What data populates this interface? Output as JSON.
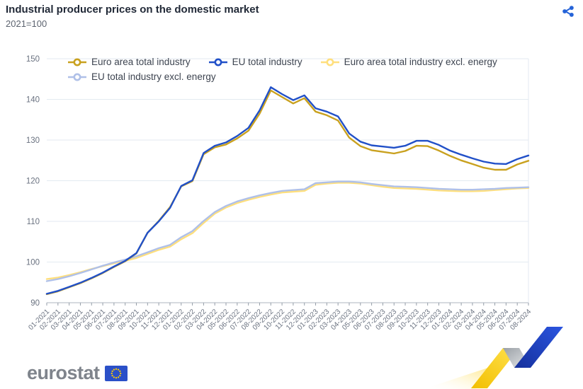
{
  "header": {
    "title": "Industrial producer prices on the domestic market",
    "subtitle": "2021=100"
  },
  "footer": {
    "logo_text": "eurostat"
  },
  "accent_colors": {
    "share_icon": "#2563d8",
    "flag_blue": "#2b50c8",
    "flag_star_yellow": "#ffcc00",
    "ribbon_yellow": "#ffd617",
    "ribbon_blue": "#1d46c8"
  },
  "chart_data": {
    "type": "line",
    "title": "Industrial producer prices on the domestic market",
    "subtitle": "2021=100",
    "legend_position": "top",
    "grid": true,
    "ylim": [
      90,
      150
    ],
    "ytick_step": 10,
    "categories": [
      "01-2021",
      "02-2021",
      "03-2021",
      "04-2021",
      "05-2021",
      "06-2021",
      "07-2021",
      "08-2021",
      "09-2021",
      "10-2021",
      "11-2021",
      "12-2021",
      "01-2022",
      "02-2022",
      "03-2022",
      "04-2022",
      "05-2022",
      "06-2022",
      "07-2022",
      "08-2022",
      "09-2022",
      "10-2022",
      "11-2022",
      "12-2022",
      "01-2023",
      "02-2023",
      "03-2023",
      "04-2023",
      "05-2023",
      "06-2023",
      "07-2023",
      "08-2023",
      "09-2023",
      "10-2023",
      "11-2023",
      "12-2023",
      "01-2024",
      "02-2024",
      "03-2024",
      "04-2024",
      "05-2024",
      "06-2024",
      "07-2024",
      "08-2024"
    ],
    "series": [
      {
        "name": "Euro area total industry",
        "color": "#c9a11f",
        "values": [
          92.1,
          92.8,
          93.8,
          94.8,
          96.0,
          97.3,
          98.8,
          100.2,
          102.1,
          107.2,
          110.1,
          113.5,
          118.6,
          119.9,
          126.5,
          128.2,
          128.9,
          130.4,
          132.3,
          136.5,
          142.2,
          140.6,
          139.0,
          140.3,
          137.0,
          136.1,
          134.8,
          130.6,
          128.5,
          127.5,
          127.1,
          126.7,
          127.3,
          128.6,
          128.5,
          127.4,
          126.1,
          125.0,
          124.1,
          123.2,
          122.7,
          122.7,
          124.0,
          124.9
        ]
      },
      {
        "name": "EU total industry",
        "color": "#2150c8",
        "values": [
          92.2,
          92.9,
          93.9,
          94.9,
          96.1,
          97.4,
          98.9,
          100.3,
          102.2,
          107.2,
          110.0,
          113.3,
          118.7,
          120.1,
          126.8,
          128.6,
          129.4,
          131.0,
          133.0,
          137.3,
          143.0,
          141.3,
          139.8,
          141.0,
          137.8,
          137.0,
          135.8,
          131.6,
          129.6,
          128.7,
          128.4,
          128.1,
          128.6,
          129.8,
          129.8,
          128.8,
          127.4,
          126.4,
          125.5,
          124.7,
          124.2,
          124.1,
          125.3,
          126.2
        ]
      },
      {
        "name": "Euro area total industry excl. energy",
        "color": "#ffdf7d",
        "values": [
          95.8,
          96.2,
          96.8,
          97.5,
          98.3,
          99.0,
          99.7,
          100.3,
          101.0,
          102.0,
          103.0,
          103.8,
          105.6,
          107.1,
          109.6,
          111.9,
          113.4,
          114.5,
          115.3,
          116.0,
          116.6,
          117.1,
          117.3,
          117.5,
          119.0,
          119.3,
          119.5,
          119.5,
          119.3,
          118.9,
          118.5,
          118.2,
          118.1,
          118.0,
          117.8,
          117.6,
          117.5,
          117.4,
          117.4,
          117.5,
          117.7,
          117.9,
          118.1,
          118.2
        ]
      },
      {
        "name": "EU total industry excl. energy",
        "color": "#afc0e8",
        "values": [
          95.3,
          95.8,
          96.5,
          97.3,
          98.2,
          99.1,
          99.9,
          100.6,
          101.4,
          102.4,
          103.4,
          104.2,
          106.1,
          107.6,
          110.1,
          112.3,
          113.8,
          114.9,
          115.7,
          116.4,
          117.0,
          117.5,
          117.7,
          117.9,
          119.4,
          119.6,
          119.8,
          119.8,
          119.6,
          119.2,
          118.9,
          118.6,
          118.5,
          118.4,
          118.2,
          118.0,
          117.9,
          117.8,
          117.8,
          117.9,
          118.0,
          118.2,
          118.3,
          118.4
        ]
      }
    ]
  }
}
